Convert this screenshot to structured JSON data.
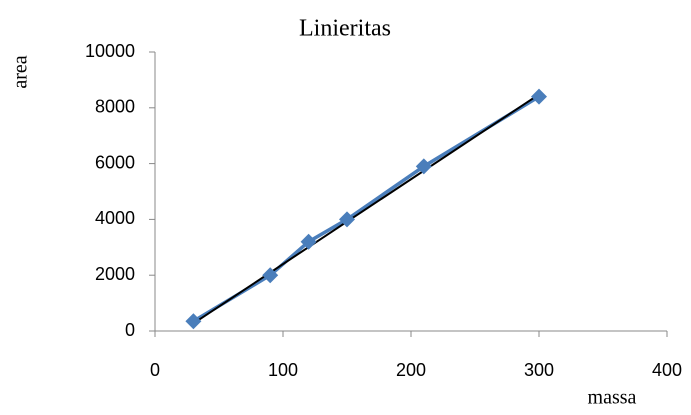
{
  "chart_data": {
    "type": "scatter",
    "title": "Linieritas",
    "x_label": "massa",
    "y_label": "area",
    "xlim": [
      0,
      400
    ],
    "xticks": [
      0,
      100,
      200,
      300,
      400
    ],
    "ylim": [
      0,
      10000
    ],
    "yticks": [
      0,
      2000,
      4000,
      6000,
      8000,
      10000
    ],
    "series": [
      {
        "color": "#4a7ebb",
        "x": [
          30,
          90,
          120,
          150,
          210,
          300
        ],
        "values": [
          350,
          2000,
          3200,
          4000,
          5900,
          8400
        ]
      }
    ],
    "trendline": {
      "color": "#000000",
      "x": [
        30,
        300
      ],
      "values": [
        270,
        8480
      ]
    }
  }
}
